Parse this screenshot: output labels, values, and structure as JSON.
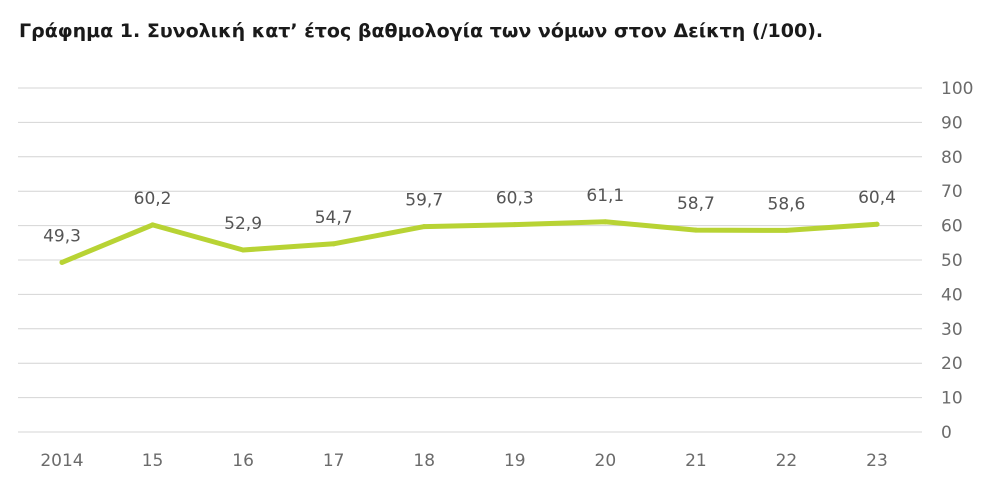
{
  "title": "Γράφημα 1. Συνολική κατ’ έτος βαθμολογία των νόμων στον Δείκτη (/100).",
  "colors": {
    "line": "#b8d334",
    "grid": "#d4d4d4",
    "text": "#6b6b6b"
  },
  "chart_data": {
    "type": "line",
    "title": "Γράφημα 1. Συνολική κατ’ έτος βαθμολογία των νόμων στον Δείκτη (/100).",
    "categories": [
      "2014",
      "15",
      "16",
      "17",
      "18",
      "19",
      "20",
      "21",
      "22",
      "23"
    ],
    "series": [
      {
        "values": [
          49.3,
          60.2,
          52.9,
          54.7,
          59.7,
          60.3,
          61.1,
          58.7,
          58.6,
          60.4
        ],
        "labels": [
          "49,3",
          "60,2",
          "52,9",
          "54,7",
          "59,7",
          "60,3",
          "61,1",
          "58,7",
          "58,6",
          "60,4"
        ]
      }
    ],
    "ylim": [
      0,
      100
    ],
    "yticks": [
      "0",
      "10",
      "20",
      "30",
      "40",
      "50",
      "60",
      "70",
      "80",
      "90",
      "100"
    ],
    "y_axis_side": "right",
    "grid": true,
    "legend": "none"
  }
}
